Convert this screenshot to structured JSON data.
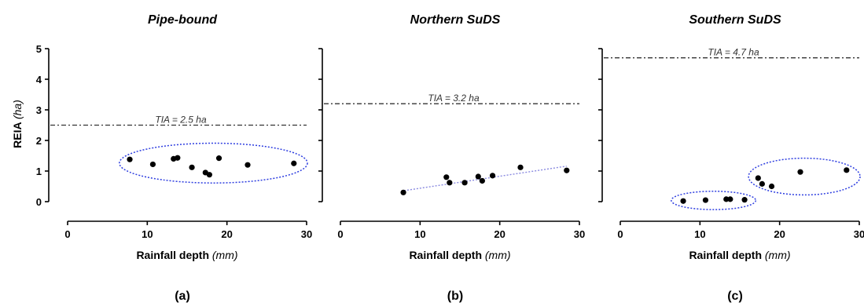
{
  "y_axis": {
    "label": "REIA",
    "unit": "(ha)"
  },
  "chart_data": [
    {
      "type": "scatter",
      "title": "Pipe-bound",
      "panel_label": "(a)",
      "xlabel": "Rainfall depth",
      "xlabel_unit": "(mm)",
      "ylabel": "REIA",
      "ylabel_unit": "(ha)",
      "xlim": [
        0,
        30
      ],
      "ylim": [
        0,
        5
      ],
      "xticks": [
        0,
        10,
        20,
        30
      ],
      "yticks": [
        0,
        1,
        2,
        3,
        4,
        5
      ],
      "points": [
        {
          "x": 7.8,
          "y": 1.38
        },
        {
          "x": 10.7,
          "y": 1.22
        },
        {
          "x": 13.3,
          "y": 1.4
        },
        {
          "x": 13.8,
          "y": 1.43
        },
        {
          "x": 15.6,
          "y": 1.12
        },
        {
          "x": 17.3,
          "y": 0.95
        },
        {
          "x": 17.8,
          "y": 0.88
        },
        {
          "x": 19.0,
          "y": 1.42
        },
        {
          "x": 22.6,
          "y": 1.2
        },
        {
          "x": 28.4,
          "y": 1.25
        }
      ],
      "hline": {
        "y": 2.5,
        "label": "TIA = 2.5 ha"
      },
      "ellipses": [
        {
          "cx": 18.3,
          "cy": 1.26,
          "rx": 11.8,
          "ry": 0.65
        }
      ],
      "fit_line": null
    },
    {
      "type": "scatter",
      "title": "Northern SuDS",
      "panel_label": "(b)",
      "xlabel": "Rainfall depth",
      "xlabel_unit": "(mm)",
      "xlim": [
        0,
        30
      ],
      "ylim": [
        0,
        5
      ],
      "xticks": [
        0,
        10,
        20,
        30
      ],
      "yticks": [
        0,
        1,
        2,
        3,
        4,
        5
      ],
      "points": [
        {
          "x": 7.9,
          "y": 0.3
        },
        {
          "x": 13.3,
          "y": 0.8
        },
        {
          "x": 13.7,
          "y": 0.62
        },
        {
          "x": 15.6,
          "y": 0.62
        },
        {
          "x": 17.3,
          "y": 0.82
        },
        {
          "x": 17.8,
          "y": 0.68
        },
        {
          "x": 19.1,
          "y": 0.85
        },
        {
          "x": 22.6,
          "y": 1.12
        },
        {
          "x": 28.4,
          "y": 1.02
        }
      ],
      "hline": {
        "y": 3.2,
        "label": "TIA = 3.2 ha"
      },
      "ellipses": [],
      "fit_line": {
        "x1": 8.0,
        "y1": 0.36,
        "x2": 28.4,
        "y2": 1.16
      }
    },
    {
      "type": "scatter",
      "title": "Southern SuDS",
      "panel_label": "(c)",
      "xlabel": "Rainfall depth",
      "xlabel_unit": "(mm)",
      "xlim": [
        0,
        30
      ],
      "ylim": [
        0,
        5
      ],
      "xticks": [
        0,
        10,
        20,
        30
      ],
      "yticks": [
        0,
        1,
        2,
        3,
        4,
        5
      ],
      "points": [
        {
          "x": 7.9,
          "y": 0.02
        },
        {
          "x": 10.7,
          "y": 0.05
        },
        {
          "x": 13.3,
          "y": 0.08
        },
        {
          "x": 13.8,
          "y": 0.08
        },
        {
          "x": 15.6,
          "y": 0.06
        },
        {
          "x": 17.3,
          "y": 0.77
        },
        {
          "x": 17.8,
          "y": 0.58
        },
        {
          "x": 19.0,
          "y": 0.5
        },
        {
          "x": 22.6,
          "y": 0.97
        },
        {
          "x": 28.4,
          "y": 1.03
        }
      ],
      "hline": {
        "y": 4.7,
        "label": "TIA = 4.7 ha"
      },
      "ellipses": [
        {
          "cx": 11.7,
          "cy": 0.04,
          "rx": 5.3,
          "ry": 0.3
        },
        {
          "cx": 23.1,
          "cy": 0.82,
          "rx": 7.0,
          "ry": 0.6
        }
      ],
      "fit_line": null
    }
  ]
}
